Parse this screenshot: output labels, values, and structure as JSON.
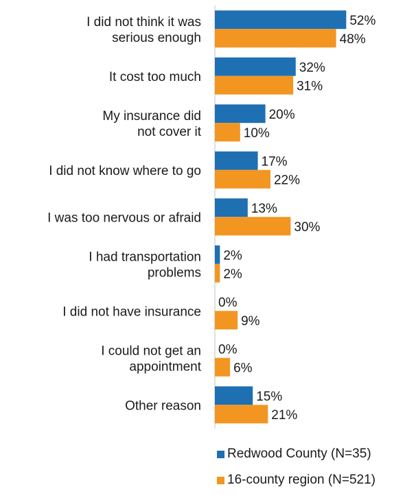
{
  "chart_data": {
    "type": "bar",
    "orientation": "horizontal",
    "categories": [
      [
        "I did not think it was",
        "serious enough"
      ],
      [
        "It cost too much"
      ],
      [
        "My insurance did",
        "not cover it"
      ],
      [
        "I did not know where to go"
      ],
      [
        "I was too nervous or afraid"
      ],
      [
        "I had transportation",
        "problems"
      ],
      [
        "I did not have insurance"
      ],
      [
        "I could not get an",
        "appointment"
      ],
      [
        "Other reason"
      ]
    ],
    "series": [
      {
        "name": "Redwood County (N=35)",
        "color": "#1f6fb3",
        "values": [
          52,
          32,
          20,
          17,
          13,
          2,
          0,
          0,
          15
        ],
        "labels": [
          "52%",
          "32%",
          "20%",
          "17%",
          "13%",
          "2%",
          "0%",
          "0%",
          "15%"
        ]
      },
      {
        "name": "16-county region (N=521)",
        "color": "#f39521",
        "values": [
          48,
          31,
          10,
          22,
          30,
          2,
          9,
          6,
          21
        ],
        "labels": [
          "48%",
          "31%",
          "10%",
          "22%",
          "30%",
          "2%",
          "9%",
          "6%",
          "21%"
        ]
      }
    ],
    "xlim": [
      0,
      100
    ],
    "grid": false,
    "legend_position": "bottom"
  }
}
